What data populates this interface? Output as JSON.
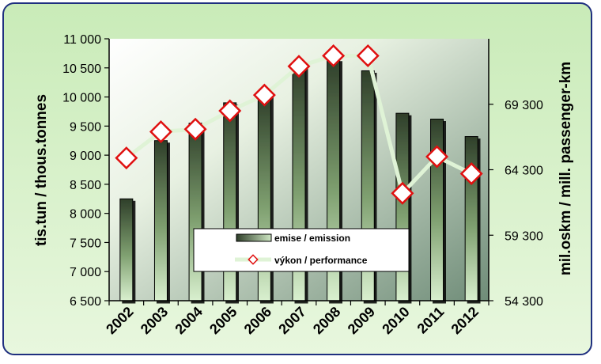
{
  "chart_data": {
    "type": "bar",
    "categories": [
      "2002",
      "2003",
      "2004",
      "2005",
      "2006",
      "2007",
      "2008",
      "2009",
      "2010",
      "2011",
      "2012"
    ],
    "series": [
      {
        "name": "emise / emission",
        "type": "bar",
        "axis": "left",
        "values": [
          8250,
          9250,
          9550,
          9900,
          10050,
          10550,
          10650,
          10450,
          9720,
          9620,
          9320
        ]
      },
      {
        "name": "výkon / performance",
        "type": "line",
        "axis": "right",
        "values": [
          65200,
          67200,
          67400,
          68800,
          70000,
          72200,
          73000,
          73000,
          62500,
          65300,
          64000
        ]
      }
    ],
    "ylabel": "tis.tun / thous.tonnes",
    "ylabel_right": "mil.oskm / mill. passenger-km",
    "ylim": [
      6500,
      11000
    ],
    "ylim_right": [
      54300,
      74300
    ],
    "yticks": [
      "6 500",
      "7 000",
      "7 500",
      "8 000",
      "8 500",
      "9 000",
      "9 500",
      "10 000",
      "10 500",
      "11 000"
    ],
    "yticks_right": [
      "54 300",
      "59 300",
      "64 300",
      "69 300"
    ],
    "legend_position": "lower-center",
    "colors": {
      "bar_dark": "#2f3f2a",
      "bar_light": "#cfe8c4",
      "line": "#dff3d6",
      "marker_edge": "#e01010",
      "marker_fill": "#ffffff",
      "frame_border": "#1f2f7f",
      "frame_bg": "#d6f0c8"
    }
  }
}
